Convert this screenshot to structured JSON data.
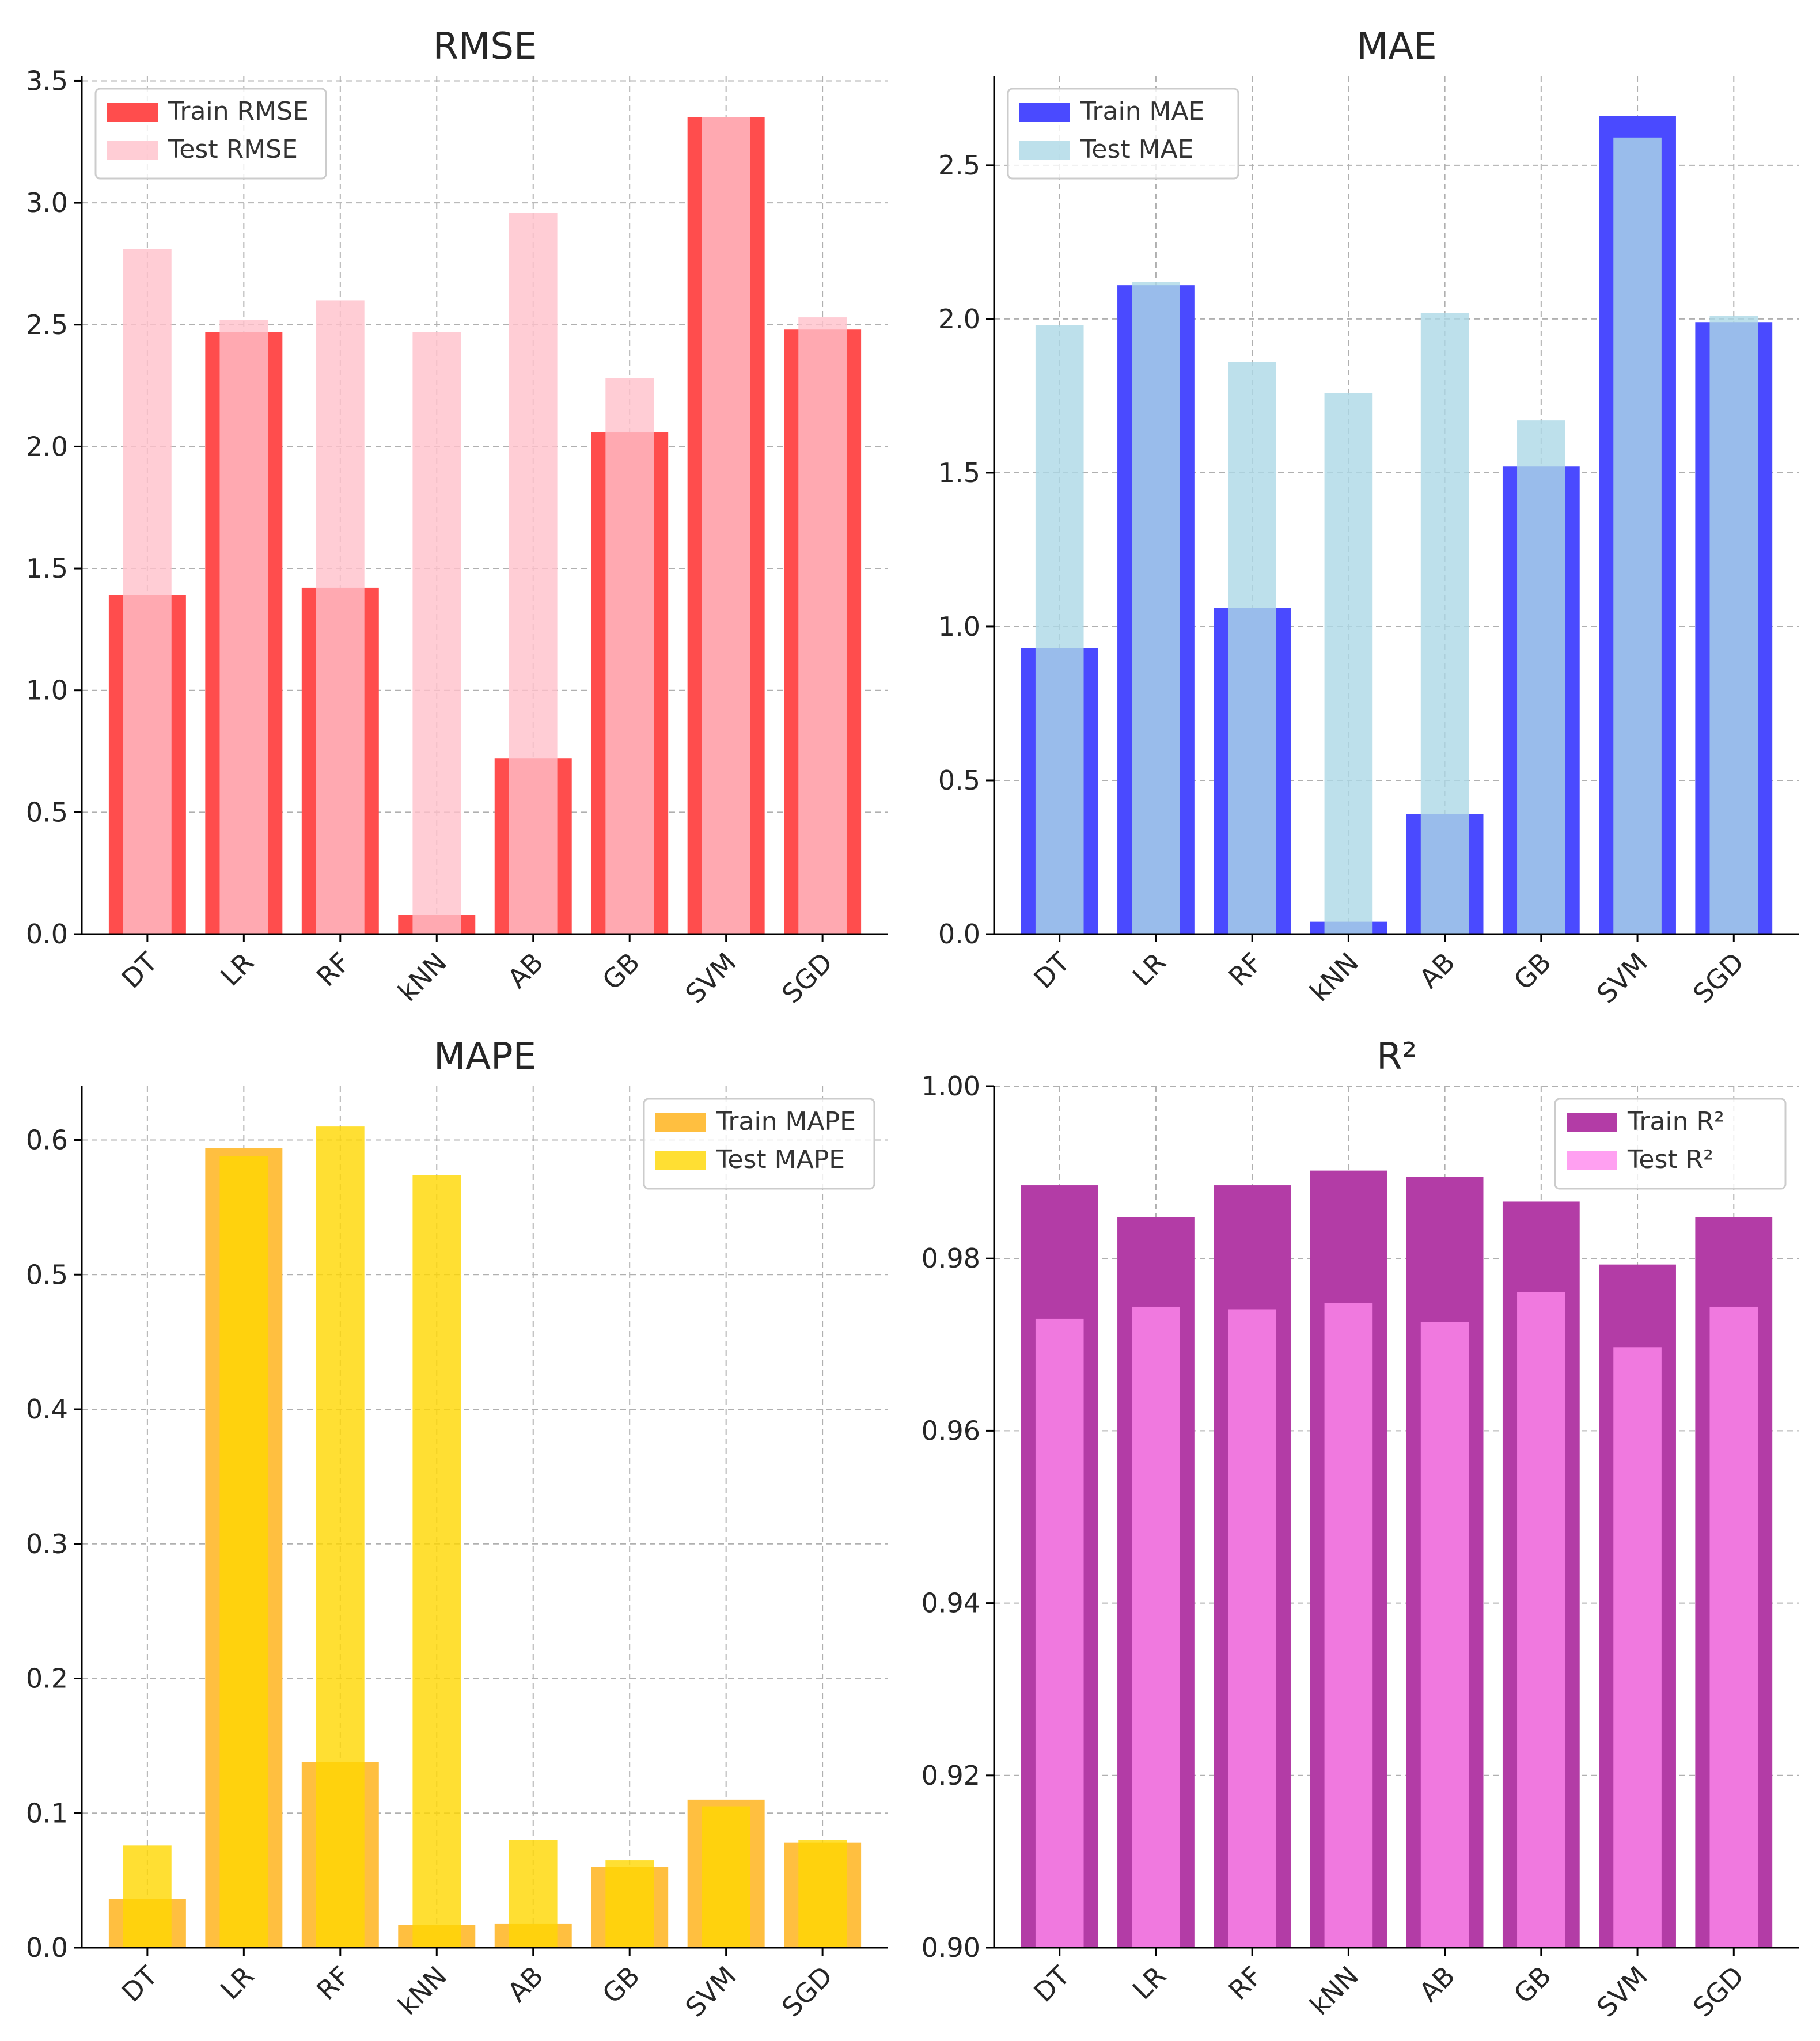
{
  "chart_data": [
    {
      "type": "bar",
      "title": "RMSE",
      "categories": [
        "DT",
        "LR",
        "RF",
        "kNN",
        "AB",
        "GB",
        "SVM",
        "SGD"
      ],
      "series": [
        {
          "name": "Train RMSE",
          "color": "#ff4d4d",
          "values": [
            1.39,
            2.47,
            1.42,
            0.08,
            0.72,
            2.06,
            3.35,
            2.48
          ]
        },
        {
          "name": "Test RMSE",
          "color": "#ffc0cb",
          "values": [
            2.81,
            2.52,
            2.6,
            2.47,
            2.96,
            2.28,
            3.35,
            2.53
          ]
        }
      ],
      "ylim": [
        0,
        3.52
      ],
      "yticks": [
        "0.0",
        "0.5",
        "1.0",
        "1.5",
        "2.0",
        "2.5",
        "3.0",
        "3.5"
      ],
      "legend": "top-left"
    },
    {
      "type": "bar",
      "title": "MAE",
      "categories": [
        "DT",
        "LR",
        "RF",
        "kNN",
        "AB",
        "GB",
        "SVM",
        "SGD"
      ],
      "series": [
        {
          "name": "Train MAE",
          "color": "#4a4aff",
          "values": [
            0.93,
            2.11,
            1.06,
            0.04,
            0.39,
            1.52,
            2.66,
            1.99
          ]
        },
        {
          "name": "Test MAE",
          "color": "#add8e6",
          "values": [
            1.98,
            2.12,
            1.86,
            1.76,
            2.02,
            1.67,
            2.59,
            2.01
          ]
        }
      ],
      "ylim": [
        0,
        2.79
      ],
      "yticks": [
        "0.0",
        "0.5",
        "1.0",
        "1.5",
        "2.0",
        "2.5"
      ],
      "legend": "top-left"
    },
    {
      "type": "bar",
      "title": "MAPE",
      "categories": [
        "DT",
        "LR",
        "RF",
        "kNN",
        "AB",
        "GB",
        "SVM",
        "SGD"
      ],
      "series": [
        {
          "name": "Train MAPE",
          "color": "#ffbf40",
          "values": [
            0.036,
            0.594,
            0.138,
            0.017,
            0.018,
            0.06,
            0.11,
            0.078
          ]
        },
        {
          "name": "Test MAPE",
          "color": "#ffd700",
          "values": [
            0.076,
            0.588,
            0.61,
            0.574,
            0.08,
            0.065,
            0.105,
            0.08
          ]
        }
      ],
      "ylim": [
        0,
        0.64
      ],
      "yticks": [
        "0.0",
        "0.1",
        "0.2",
        "0.3",
        "0.4",
        "0.5",
        "0.6"
      ],
      "legend": "top-right"
    },
    {
      "type": "bar",
      "title": "R²",
      "categories": [
        "DT",
        "LR",
        "RF",
        "kNN",
        "AB",
        "GB",
        "SVM",
        "SGD"
      ],
      "series": [
        {
          "name": "Train R²",
          "color": "#b33ca6",
          "values": [
            0.9885,
            0.9848,
            0.9885,
            0.9902,
            0.9895,
            0.9866,
            0.9793,
            0.9848
          ]
        },
        {
          "name": "Test R²",
          "color": "#ff88ee",
          "values": [
            0.973,
            0.9744,
            0.9741,
            0.9748,
            0.9726,
            0.9761,
            0.9697,
            0.9744
          ]
        }
      ],
      "ylim": [
        0.9,
        1.0
      ],
      "yticks": [
        "0.90",
        "0.92",
        "0.94",
        "0.96",
        "0.98",
        "1.00"
      ],
      "legend": "top-right"
    }
  ]
}
